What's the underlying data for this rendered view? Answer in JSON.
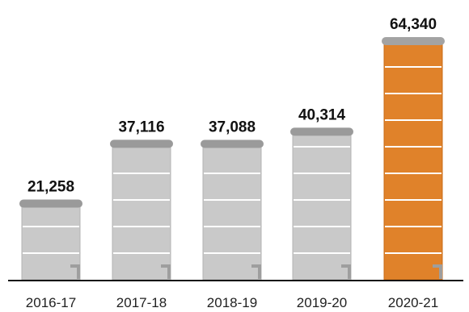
{
  "chart_data": {
    "type": "bar",
    "categories": [
      "2016-17",
      "2017-18",
      "2018-19",
      "2019-20",
      "2020-21"
    ],
    "values": [
      21258,
      37116,
      37088,
      40314,
      64340
    ],
    "value_labels": [
      "21,258",
      "37,116",
      "37,088",
      "40,314",
      "64,340"
    ],
    "highlight_index": 4,
    "ylim": [
      0,
      64340
    ],
    "grid": false,
    "colors": {
      "bar": "#c9c9c9",
      "bar_edge": "#b4b4b4",
      "bar_cap": "#9a9a9a",
      "highlight": "#e0822a",
      "highlight_cap": "#a3a3a3",
      "divider": "#ffffff",
      "spout": "#9e9e9e",
      "baseline": "#111111"
    },
    "bar_style": "water-tank"
  }
}
